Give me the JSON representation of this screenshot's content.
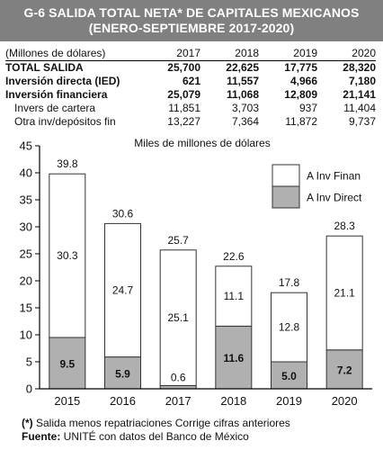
{
  "header": {
    "title_line1": "G-6 SALIDA TOTAL NETA* DE CAPITALES MEXICANOS",
    "title_line2": "(ENERO-SEPTIEMBRE 2017-2020)"
  },
  "table": {
    "unit_label": "(Millones de dólares)",
    "years": [
      "2017",
      "2018",
      "2019",
      "2020"
    ],
    "rows": [
      {
        "label": "TOTAL SALIDA",
        "values": [
          "25,700",
          "22,625",
          "17,775",
          "28,320"
        ],
        "style": "bold"
      },
      {
        "label": "Inversión directa (IED)",
        "values": [
          "621",
          "11,557",
          "4,966",
          "7,180"
        ],
        "style": "bold"
      },
      {
        "label": "Inversión financiera",
        "values": [
          "25,079",
          "11,068",
          "12,809",
          "21,141"
        ],
        "style": "bold"
      },
      {
        "label": "Invers de cartera",
        "values": [
          "11,851",
          "3,703",
          "937",
          "11,404"
        ],
        "style": "sub"
      },
      {
        "label": "Otra inv/depósitos fin",
        "values": [
          "13,227",
          "7,364",
          "11,872",
          "9,737"
        ],
        "style": "sub"
      }
    ]
  },
  "chart_data": {
    "type": "bar",
    "stacked": true,
    "title": "Miles de millones de dólares",
    "categories": [
      "2015",
      "2016",
      "2017",
      "2018",
      "2019",
      "2020"
    ],
    "series": [
      {
        "name": "A Inv Direct",
        "values": [
          9.5,
          5.9,
          0.6,
          11.6,
          5.0,
          7.2
        ],
        "color": "#b0b0b0"
      },
      {
        "name": "A Inv Finan",
        "values": [
          30.3,
          24.7,
          25.1,
          11.1,
          12.8,
          21.1
        ],
        "color": "#ffffff"
      }
    ],
    "totals": [
      39.8,
      30.6,
      25.7,
      22.6,
      17.8,
      28.3
    ],
    "totals_labels": [
      "39.8",
      "30.6",
      "25.7",
      "22.6",
      "17.8",
      "28.3"
    ],
    "direct_labels": [
      "9.5",
      "5.9",
      "0.6",
      "11.6",
      "5.0",
      "7.2"
    ],
    "finan_labels": [
      "30.3",
      "24.7",
      "25.1",
      "11.1",
      "12.8",
      "21.1"
    ],
    "yticks": [
      "0",
      "5",
      "10",
      "15",
      "20",
      "25",
      "30",
      "35",
      "40",
      "45"
    ],
    "ylim": [
      0,
      45
    ],
    "legend_position": "top-right",
    "grid": false
  },
  "footer": {
    "note_prefix": "(*)",
    "note_text": " Salida menos repatriaciones Corrige cifras anteriores",
    "source_prefix": "Fuente:",
    "source_text": " UNITÉ con datos del Banco de México"
  }
}
